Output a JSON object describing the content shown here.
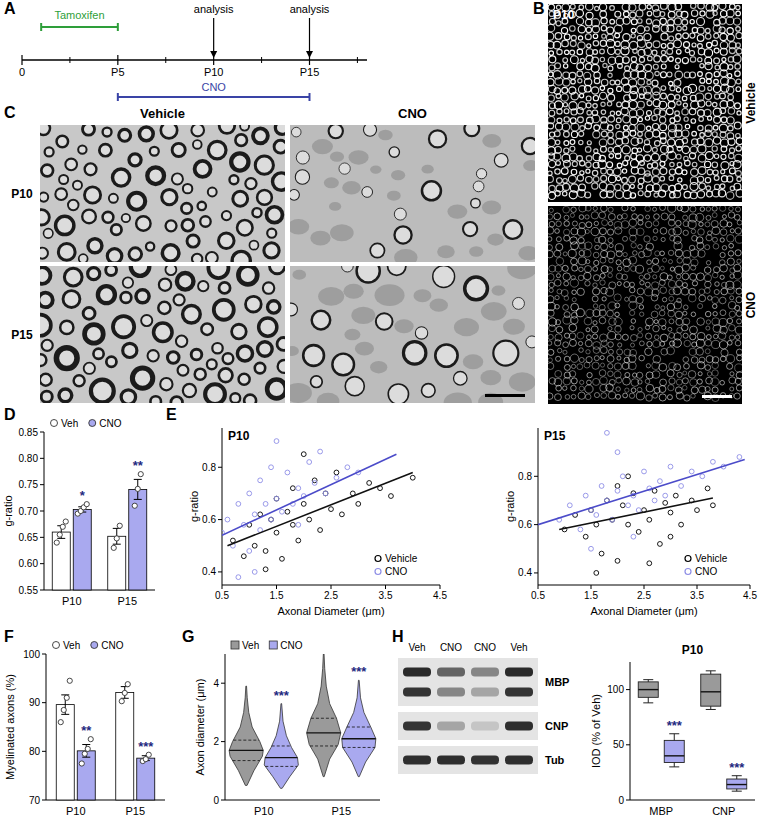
{
  "panel_letters": [
    "A",
    "B",
    "C",
    "D",
    "E",
    "F",
    "G",
    "H"
  ],
  "timeline": {
    "xlim": [
      0,
      18
    ],
    "ticks": [
      {
        "value": 0,
        "label": "0"
      },
      {
        "value": 5,
        "label": "P5"
      },
      {
        "value": 10,
        "label": "P10"
      },
      {
        "value": 15,
        "label": "P15"
      }
    ],
    "minor_ticks": [
      2.5,
      7.5,
      12.5,
      17.5
    ],
    "treatments": [
      {
        "label": "Tamoxifen",
        "start": 1,
        "end": 5,
        "color": "#2e9e3a"
      },
      {
        "label": "CNO",
        "start": 5,
        "end": 15,
        "color": "#3a44a6"
      }
    ],
    "events": [
      {
        "label": "analysis",
        "at": 10
      },
      {
        "label": "analysis",
        "at": 15
      }
    ]
  },
  "micrograph_b": {
    "title": "P10",
    "rows": [
      "Vehicle",
      "CNO"
    ]
  },
  "micrograph_c": {
    "columns": [
      "Vehicle",
      "CNO"
    ],
    "rows": [
      "P10",
      "P15"
    ]
  },
  "blot": {
    "lanes": [
      "Veh",
      "CNO",
      "CNO",
      "Veh"
    ],
    "bands": [
      {
        "label": "MBP",
        "rows": [
          [
            0.9,
            0.62,
            0.45,
            0.9
          ],
          [
            0.85,
            0.45,
            0.3,
            0.85
          ]
        ]
      },
      {
        "label": "CNP",
        "rows": [
          [
            0.85,
            0.3,
            0.15,
            0.88
          ]
        ]
      },
      {
        "label": "Tub",
        "rows": [
          [
            0.88,
            0.88,
            0.86,
            0.88
          ]
        ]
      }
    ]
  },
  "chart_data": [
    {
      "type": "bar",
      "y_label": "g-ratio",
      "categories": [
        "P10",
        "P15"
      ],
      "ylim": [
        0.55,
        0.85
      ],
      "yticks": [
        0.55,
        {
          "value": 0.6,
          "label": "0.60"
        },
        0.65,
        {
          "value": 0.7,
          "label": "0.70"
        },
        0.75,
        {
          "value": 0.8,
          "label": "0.80"
        },
        0.85
      ],
      "legend": "top-left",
      "series": [
        {
          "name": "Veh",
          "color": "#ffffff",
          "values": [
            0.66,
            0.652
          ],
          "errors": [
            0.012,
            0.015
          ],
          "points": [
            [
              0.64,
              0.655,
              0.67,
              0.68
            ],
            [
              0.63,
              0.648,
              0.672
            ]
          ]
        },
        {
          "name": "CNO",
          "color": "#a9a9ef",
          "values": [
            0.703,
            0.741
          ],
          "errors": [
            0.005,
            0.019
          ],
          "points": [
            [
              0.695,
              0.7,
              0.707,
              0.713
            ],
            [
              0.71,
              0.742,
              0.77
            ]
          ],
          "significance": [
            "*",
            "**"
          ]
        }
      ]
    },
    {
      "type": "scatter",
      "title": "P10",
      "x_label": "Axonal Diameter (μm)",
      "y_label": "g-ratio",
      "xlim": [
        0.5,
        4.5
      ],
      "xticks": [
        0.5,
        1.5,
        2.5,
        3.5,
        4.5
      ],
      "ylim": [
        0.35,
        0.95
      ],
      "yticks": [
        0.4,
        0.6,
        0.8
      ],
      "legend": "bottom-right",
      "marker": "circle",
      "series": [
        {
          "name": "Vehicle",
          "color": "#000000",
          "x": [
            0.7,
            0.9,
            1.0,
            1.1,
            1.2,
            1.3,
            1.4,
            1.5,
            1.5,
            1.6,
            1.7,
            1.8,
            1.8,
            1.9,
            2.0,
            2.1,
            2.2,
            2.3,
            2.4,
            2.5,
            2.6,
            2.7,
            2.9,
            3.0,
            3.2,
            3.4,
            3.6,
            4.0,
            1.3,
            2.0
          ],
          "values": [
            0.52,
            0.46,
            0.58,
            0.5,
            0.62,
            0.48,
            0.6,
            0.55,
            0.68,
            0.45,
            0.63,
            0.58,
            0.72,
            0.52,
            0.66,
            0.6,
            0.75,
            0.56,
            0.7,
            0.64,
            0.78,
            0.62,
            0.7,
            0.66,
            0.74,
            0.72,
            0.69,
            0.76,
            0.41,
            0.85
          ],
          "trend": {
            "x": [
              0.6,
              4.0
            ],
            "values": [
              0.5,
              0.78
            ]
          }
        },
        {
          "name": "CNO",
          "color": "#8e8ee6",
          "x": [
            0.5,
            0.6,
            0.7,
            0.8,
            0.9,
            1.0,
            1.0,
            1.1,
            1.2,
            1.2,
            1.3,
            1.4,
            1.4,
            1.5,
            1.6,
            1.7,
            1.8,
            1.9,
            2.0,
            2.1,
            2.2,
            2.4,
            2.6,
            2.8,
            3.0,
            1.1,
            1.5,
            0.8,
            1.9,
            2.3
          ],
          "values": [
            0.55,
            0.6,
            0.5,
            0.66,
            0.58,
            0.7,
            0.48,
            0.62,
            0.75,
            0.56,
            0.66,
            0.8,
            0.6,
            0.68,
            0.63,
            0.78,
            0.66,
            0.72,
            0.69,
            0.82,
            0.74,
            0.7,
            0.76,
            0.8,
            0.78,
            0.4,
            0.9,
            0.38,
            0.58,
            0.86
          ],
          "trend": {
            "x": [
              0.5,
              3.7
            ],
            "values": [
              0.54,
              0.85
            ]
          }
        }
      ]
    },
    {
      "type": "scatter",
      "title": "P15",
      "x_label": "Axonal Diameter (μm)",
      "y_label": "g-ratio",
      "xlim": [
        0.5,
        4.5
      ],
      "xticks": [
        0.5,
        1.5,
        2.5,
        3.5,
        4.5
      ],
      "ylim": [
        0.35,
        1.0
      ],
      "yticks": [
        0.4,
        0.6,
        0.8
      ],
      "legend": "bottom-right",
      "marker": "circle",
      "series": [
        {
          "name": "Vehicle",
          "color": "#000000",
          "x": [
            1.0,
            1.2,
            1.4,
            1.5,
            1.6,
            1.7,
            1.8,
            1.9,
            2.0,
            2.1,
            2.2,
            2.3,
            2.4,
            2.5,
            2.6,
            2.7,
            2.8,
            2.9,
            3.0,
            3.1,
            3.2,
            3.4,
            3.5,
            3.7,
            3.8,
            1.6,
            2.2,
            2.6,
            2.0,
            3.0
          ],
          "values": [
            0.58,
            0.64,
            0.55,
            0.66,
            0.6,
            0.48,
            0.7,
            0.62,
            0.45,
            0.68,
            0.6,
            0.73,
            0.57,
            0.66,
            0.62,
            0.74,
            0.52,
            0.69,
            0.65,
            0.72,
            0.6,
            0.7,
            0.66,
            0.75,
            0.68,
            0.4,
            0.8,
            0.44,
            0.76,
            0.55
          ],
          "trend": {
            "x": [
              0.9,
              3.8
            ],
            "values": [
              0.58,
              0.71
            ]
          }
        },
        {
          "name": "CNO",
          "color": "#8e8ee6",
          "x": [
            0.9,
            1.1,
            1.3,
            1.4,
            1.5,
            1.6,
            1.7,
            1.8,
            1.9,
            2.0,
            2.1,
            2.2,
            2.3,
            2.4,
            2.5,
            2.6,
            2.7,
            2.8,
            3.0,
            3.2,
            3.4,
            3.6,
            3.8,
            4.0,
            4.3,
            1.8,
            2.3,
            2.0,
            2.9,
            1.5
          ],
          "values": [
            0.62,
            0.68,
            0.58,
            0.72,
            0.66,
            0.64,
            0.76,
            0.7,
            0.62,
            0.74,
            0.8,
            0.68,
            0.72,
            0.66,
            0.82,
            0.75,
            0.7,
            0.78,
            0.84,
            0.76,
            0.82,
            0.8,
            0.86,
            0.84,
            0.88,
            0.98,
            0.55,
            0.9,
            0.72,
            0.5
          ],
          "trend": {
            "x": [
              0.5,
              4.4
            ],
            "values": [
              0.6,
              0.87
            ]
          }
        }
      ]
    },
    {
      "type": "bar",
      "y_label": "Myelinated axons (%)",
      "categories": [
        "P10",
        "P15"
      ],
      "ylim": [
        70,
        100
      ],
      "yticks": [
        70,
        80,
        90,
        100
      ],
      "legend": "top-left",
      "series": [
        {
          "name": "Veh",
          "color": "#ffffff",
          "values": [
            89.6,
            92.1
          ],
          "errors": [
            2.0,
            1.2
          ],
          "points": [
            [
              86,
              88.5,
              91,
              94.5
            ],
            [
              90.3,
              92,
              93.8
            ]
          ]
        },
        {
          "name": "CNO",
          "color": "#a9a9ef",
          "values": [
            80.1,
            78.6
          ],
          "errors": [
            1.3,
            0.5
          ],
          "points": [
            [
              77.5,
              79.5,
              80.5,
              82.5
            ],
            [
              78,
              78.4,
              79.3
            ]
          ],
          "significance": [
            "**",
            "***"
          ]
        }
      ]
    },
    {
      "type": "violin",
      "y_label": "Axon diameter (μm)",
      "categories": [
        "P10",
        "P15"
      ],
      "ylim": [
        0,
        5
      ],
      "yticks": [
        0,
        2,
        4
      ],
      "legend": "top-left",
      "series": [
        {
          "name": "Veh",
          "color": "#9a9a9a",
          "violins": [
            {
              "density_y": [
                0.5,
                1.0,
                1.5,
                1.7,
                2.0,
                2.5,
                3.0,
                3.5,
                3.9
              ],
              "density": [
                0.05,
                0.45,
                0.95,
                1.0,
                0.8,
                0.35,
                0.15,
                0.06,
                0.02
              ],
              "quartiles": [
                1.35,
                1.7,
                2.05
              ]
            },
            {
              "density_y": [
                0.8,
                1.4,
                1.9,
                2.3,
                2.8,
                3.3,
                3.9,
                4.5,
                5.0
              ],
              "density": [
                0.03,
                0.35,
                0.85,
                1.0,
                0.75,
                0.35,
                0.15,
                0.06,
                0.02
              ],
              "quartiles": [
                1.85,
                2.3,
                2.8
              ]
            }
          ]
        },
        {
          "name": "CNO",
          "color": "#a9a9ef",
          "violins": [
            {
              "density_y": [
                0.4,
                0.8,
                1.2,
                1.45,
                1.8,
                2.2,
                2.7,
                3.3
              ],
              "density": [
                0.05,
                0.5,
                1.0,
                0.95,
                0.6,
                0.3,
                0.1,
                0.02
              ],
              "quartiles": [
                1.15,
                1.45,
                1.85
              ]
            },
            {
              "density_y": [
                0.8,
                1.3,
                1.8,
                2.1,
                2.5,
                3.0,
                3.5,
                4.1
              ],
              "density": [
                0.03,
                0.4,
                0.95,
                1.0,
                0.7,
                0.3,
                0.1,
                0.02
              ],
              "quartiles": [
                1.8,
                2.1,
                2.5
              ]
            }
          ],
          "significance": [
            "***",
            "***"
          ]
        }
      ]
    },
    {
      "type": "box",
      "title": "P10",
      "y_label": "IOD (% of Veh)",
      "categories": [
        "MBP",
        "CNP"
      ],
      "ylim": [
        0,
        125
      ],
      "yticks": [
        0,
        50,
        100
      ],
      "series": [
        {
          "color": "#9a9a9a",
          "whisker_low": [
            88,
            82
          ],
          "q1": [
            93,
            85
          ],
          "median": [
            100,
            98
          ],
          "q3": [
            107,
            114
          ],
          "whisker_high": [
            109,
            117
          ]
        },
        {
          "color": "#a9a9ef",
          "whisker_low": [
            30,
            8
          ],
          "q1": [
            34,
            10
          ],
          "median": [
            40,
            14
          ],
          "q3": [
            54,
            19
          ],
          "whisker_high": [
            60,
            22
          ],
          "significance": [
            "***",
            "***"
          ]
        }
      ]
    }
  ]
}
